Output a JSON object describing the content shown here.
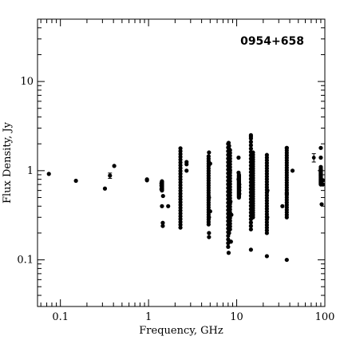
{
  "chart_data": {
    "type": "scatter",
    "title": "0954+658",
    "xlabel": "Frequency, GHz",
    "ylabel": "Flux Density, Jy",
    "x_scale": "log",
    "y_scale": "log",
    "xlim": [
      0.055,
      100
    ],
    "ylim": [
      0.03,
      50
    ],
    "x_ticks": [
      {
        "value": 0.1,
        "label": "0.1"
      },
      {
        "value": 1,
        "label": "1"
      },
      {
        "value": 10,
        "label": "10"
      },
      {
        "value": 100,
        "label": "100"
      }
    ],
    "y_ticks": [
      {
        "value": 0.1,
        "label": "0.1"
      },
      {
        "value": 1,
        "label": "1"
      },
      {
        "value": 10,
        "label": "10"
      }
    ],
    "grid": false,
    "legend": "none",
    "marker_color": "#000000",
    "points": [
      [
        0.074,
        0.92
      ],
      [
        0.15,
        0.77
      ],
      [
        0.32,
        0.63
      ],
      [
        0.365,
        0.88
      ],
      [
        0.408,
        1.13
      ],
      [
        0.96,
        0.8
      ],
      [
        0.96,
        0.78
      ],
      [
        1.4,
        0.72
      ],
      [
        1.4,
        0.68
      ],
      [
        1.4,
        0.62
      ],
      [
        1.42,
        0.4
      ],
      [
        1.45,
        0.26
      ],
      [
        1.45,
        0.24
      ],
      [
        1.46,
        0.52
      ],
      [
        1.67,
        0.4
      ],
      [
        2.7,
        1.25
      ],
      [
        2.7,
        1.18
      ],
      [
        2.7,
        1.0
      ],
      [
        4.85,
        1.6
      ],
      [
        4.85,
        0.5
      ],
      [
        4.85,
        0.3
      ],
      [
        4.85,
        0.2
      ],
      [
        4.85,
        0.18
      ],
      [
        5.0,
        1.2
      ],
      [
        5.0,
        0.35
      ],
      [
        8.1,
        2.05
      ],
      [
        8.1,
        0.12
      ],
      [
        8.4,
        1.0
      ],
      [
        8.5,
        0.45
      ],
      [
        8.6,
        0.16
      ],
      [
        8.7,
        0.32
      ],
      [
        10.5,
        1.4
      ],
      [
        10.5,
        0.95
      ],
      [
        10.5,
        0.8
      ],
      [
        10.7,
        0.7
      ],
      [
        10.7,
        0.65
      ],
      [
        10.7,
        0.6
      ],
      [
        10.7,
        0.55
      ],
      [
        14.5,
        2.4
      ],
      [
        14.5,
        0.13
      ],
      [
        15.0,
        1.5
      ],
      [
        15.0,
        0.95
      ],
      [
        15.0,
        0.75
      ],
      [
        15.0,
        0.7
      ],
      [
        15.0,
        0.5
      ],
      [
        22.0,
        1.5
      ],
      [
        22.0,
        0.11
      ],
      [
        22.2,
        0.3
      ],
      [
        22.3,
        0.6
      ],
      [
        33.0,
        0.4
      ],
      [
        37.0,
        1.8
      ],
      [
        37.0,
        0.1
      ],
      [
        37.0,
        0.55
      ],
      [
        43.0,
        1.0
      ],
      [
        90.0,
        1.8
      ],
      [
        90.0,
        1.4
      ],
      [
        90.0,
        1.1
      ],
      [
        90.0,
        0.9
      ],
      [
        92.0,
        0.42
      ],
      [
        95.0,
        0.78
      ],
      [
        95.0,
        0.7
      ]
    ],
    "point_columns": [
      {
        "x": 1.42,
        "y_min": 0.6,
        "y_max": 0.76
      },
      {
        "x": 2.3,
        "y_min": 0.23,
        "y_max": 1.78
      },
      {
        "x": 4.8,
        "y_min": 0.25,
        "y_max": 1.45
      },
      {
        "x": 8.0,
        "y_min": 0.14,
        "y_max": 2.0
      },
      {
        "x": 8.2,
        "y_min": 0.2,
        "y_max": 1.9
      },
      {
        "x": 8.4,
        "y_min": 0.22,
        "y_max": 1.7
      },
      {
        "x": 10.6,
        "y_min": 0.5,
        "y_max": 0.9
      },
      {
        "x": 14.5,
        "y_min": 0.22,
        "y_max": 2.5
      },
      {
        "x": 15.3,
        "y_min": 0.3,
        "y_max": 1.6
      },
      {
        "x": 22.0,
        "y_min": 0.2,
        "y_max": 1.4
      },
      {
        "x": 37.0,
        "y_min": 0.3,
        "y_max": 1.8
      },
      {
        "x": 90.0,
        "y_min": 0.7,
        "y_max": 1.05
      }
    ],
    "error_bars": [
      {
        "x": 0.365,
        "y": 0.88,
        "y_low": 0.82,
        "y_high": 0.94
      },
      {
        "x": 75.0,
        "y": 1.4,
        "y_low": 1.25,
        "y_high": 1.55
      }
    ]
  }
}
